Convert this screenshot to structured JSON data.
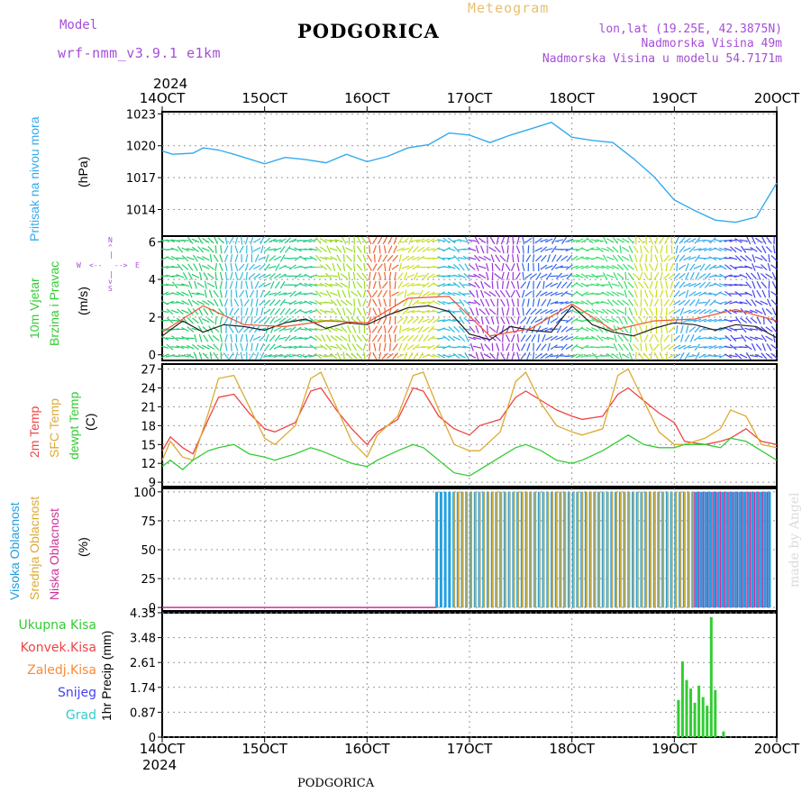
{
  "header": {
    "model_label": "Model",
    "model_name": "wrf-nmm_v3.9.1 e1km",
    "city": "PODGORICA",
    "chart_kind": "Meteogram",
    "lonlat": "lon,lat (19.25E, 42.3875N)",
    "altitude": "Nadmorska Visina 49m",
    "model_altitude": "Nadmorska Visina u modelu 54.7171m",
    "year": "2024",
    "footer_city": "PODGORICA",
    "watermark": "made by Angel"
  },
  "time_axis": {
    "labels": [
      "14OCT",
      "15OCT",
      "16OCT",
      "17OCT",
      "18OCT",
      "19OCT",
      "20OCT"
    ],
    "year_top": "2024",
    "year_bottom": "2024"
  },
  "panel_labels": {
    "pressure": [
      "Pritisak na nivou mora",
      "(hPa)"
    ],
    "wind": [
      "10m Vjetar",
      "Brzina i Pravac",
      "(m/s)"
    ],
    "compass": {
      "n": "N",
      "s": "S",
      "w": "W",
      "e": "E"
    },
    "temp": [
      "2m Temp",
      "SFC Temp",
      "dewpt Temp",
      "(C)"
    ],
    "cloud": [
      "Visoka Oblacnost",
      "Srednja Oblacnost",
      "Niska Oblacnost",
      "(%)"
    ],
    "precip": [
      "Ukupna Kisa",
      "Konvek.Kisa",
      "Zaledj.Kisa",
      "Snijeg",
      "Grad"
    ],
    "precip_axis": "1hr Precip (mm)"
  },
  "colors": {
    "pressure": "#33aaee",
    "wind_speed": "#222222",
    "gust": "#ee5533",
    "t2m": "#ee4444",
    "sfc": "#ddaa33",
    "dew": "#33cc33",
    "cloud_high": "#22a0e0",
    "cloud_mid": "#ddaa33",
    "cloud_low": "#cc3399",
    "rain_total": "#33cc33",
    "rain_conv": "#ee4444",
    "rain_frz": "#ff8833",
    "snow": "#4444ee",
    "hail": "#33cccc"
  },
  "chart_data": [
    {
      "type": "line",
      "name": "pressure",
      "ylabel": "Pritisak na nivou mora (hPa)",
      "ylim": [
        1011.5,
        1023.2
      ],
      "yticks": [
        1014,
        1017,
        1020,
        1023
      ],
      "x_days": [
        0,
        0.1,
        0.3,
        0.4,
        0.55,
        0.7,
        1,
        1.2,
        1.4,
        1.6,
        1.8,
        2,
        2.2,
        2.4,
        2.6,
        2.8,
        3,
        3.2,
        3.4,
        3.6,
        3.8,
        4,
        4.2,
        4.4,
        4.6,
        4.8,
        5,
        5.2,
        5.4,
        5.6,
        5.8,
        6
      ],
      "values": [
        1019.5,
        1019.2,
        1019.3,
        1019.8,
        1019.6,
        1019.2,
        1018.3,
        1018.9,
        1018.7,
        1018.4,
        1019.2,
        1018.5,
        1019.0,
        1019.8,
        1020.1,
        1021.2,
        1021.0,
        1020.3,
        1021.0,
        1021.6,
        1022.2,
        1020.8,
        1020.5,
        1020.3,
        1018.8,
        1017.1,
        1014.9,
        1013.9,
        1013.0,
        1012.8,
        1013.3,
        1016.5
      ],
      "grid": true
    },
    {
      "type": "line",
      "name": "wind",
      "ylabel": "10m Vjetar Brzina i Pravac (m/s)",
      "ylim": [
        -0.3,
        6.3
      ],
      "yticks": [
        0,
        2,
        4,
        6
      ],
      "x_days": [
        0,
        0.2,
        0.4,
        0.6,
        0.8,
        1,
        1.2,
        1.4,
        1.6,
        1.8,
        2,
        2.2,
        2.4,
        2.6,
        2.8,
        3,
        3.2,
        3.4,
        3.6,
        3.8,
        4,
        4.2,
        4.4,
        4.6,
        4.8,
        5,
        5.2,
        5.4,
        5.6,
        5.8,
        6
      ],
      "values": [
        1.0,
        1.8,
        1.2,
        1.6,
        1.5,
        1.3,
        1.7,
        1.9,
        1.4,
        1.7,
        1.6,
        2.1,
        2.5,
        2.6,
        2.3,
        1.1,
        0.8,
        1.5,
        1.3,
        1.2,
        2.6,
        1.6,
        1.2,
        1.0,
        1.4,
        1.7,
        1.6,
        1.3,
        1.6,
        1.5,
        0.9
      ],
      "gust_x_days": [
        0,
        0.4,
        0.8,
        1.2,
        1.6,
        2,
        2.4,
        2.8,
        3.2,
        3.6,
        4,
        4.4,
        4.8,
        5.2,
        5.6,
        6
      ],
      "gust_values": [
        1.2,
        2.6,
        1.6,
        1.5,
        1.8,
        1.7,
        3.0,
        3.1,
        1.0,
        1.4,
        2.7,
        1.3,
        1.8,
        1.9,
        2.4,
        1.8
      ],
      "arrow_color_bands": [
        {
          "from_day": 0.0,
          "to_day": 0.6,
          "color": "#22cc66"
        },
        {
          "from_day": 0.6,
          "to_day": 1.0,
          "color": "#33bbdd"
        },
        {
          "from_day": 1.0,
          "to_day": 1.5,
          "color": "#22cc88"
        },
        {
          "from_day": 1.5,
          "to_day": 2.0,
          "color": "#99dd22"
        },
        {
          "from_day": 2.0,
          "to_day": 2.3,
          "color": "#ee6633"
        },
        {
          "from_day": 2.3,
          "to_day": 2.7,
          "color": "#ccdd22"
        },
        {
          "from_day": 2.7,
          "to_day": 3.0,
          "color": "#22bbdd"
        },
        {
          "from_day": 3.0,
          "to_day": 3.5,
          "color": "#9933dd"
        },
        {
          "from_day": 3.5,
          "to_day": 4.0,
          "color": "#3366ee"
        },
        {
          "from_day": 4.0,
          "to_day": 4.6,
          "color": "#33dd66"
        },
        {
          "from_day": 4.6,
          "to_day": 5.0,
          "color": "#ccdd22"
        },
        {
          "from_day": 5.0,
          "to_day": 5.5,
          "color": "#33aaee"
        },
        {
          "from_day": 5.5,
          "to_day": 6.0,
          "color": "#4444ee"
        }
      ],
      "grid": true
    },
    {
      "type": "line",
      "name": "temperature",
      "ylabel": "(C)",
      "ylim": [
        8.3,
        27.8
      ],
      "yticks": [
        9,
        12,
        15,
        18,
        21,
        24,
        27
      ],
      "x_days": [
        0,
        0.08,
        0.2,
        0.3,
        0.45,
        0.55,
        0.7,
        0.85,
        1,
        1.1,
        1.3,
        1.45,
        1.55,
        1.7,
        1.85,
        2,
        2.1,
        2.3,
        2.45,
        2.55,
        2.7,
        2.85,
        3,
        3.1,
        3.3,
        3.45,
        3.55,
        3.7,
        3.85,
        4,
        4.1,
        4.3,
        4.45,
        4.55,
        4.7,
        4.85,
        5,
        5.1,
        5.3,
        5.45,
        5.55,
        5.7,
        5.85,
        6
      ],
      "series": [
        {
          "name": "2m Temp",
          "values": [
            14.0,
            16.2,
            14.5,
            13.5,
            19.0,
            22.5,
            23.0,
            20.0,
            17.5,
            17.0,
            18.5,
            23.5,
            24.0,
            20.5,
            17.5,
            15.0,
            17.0,
            19.0,
            24.0,
            23.5,
            19.5,
            17.5,
            16.5,
            18.0,
            19.0,
            22.5,
            23.5,
            22.0,
            20.5,
            19.5,
            19.0,
            19.5,
            23.0,
            24.0,
            22.0,
            20.0,
            18.5,
            15.5,
            15.0,
            15.5,
            16.0,
            17.5,
            15.5,
            15.0
          ]
        },
        {
          "name": "SFC Temp",
          "values": [
            12.5,
            15.5,
            13.0,
            12.5,
            20.0,
            25.5,
            26.0,
            21.0,
            16.0,
            15.0,
            18.0,
            25.5,
            26.5,
            21.0,
            15.5,
            13.0,
            16.5,
            19.5,
            26.0,
            26.5,
            20.5,
            15.0,
            14.0,
            14.0,
            17.0,
            25.0,
            26.5,
            21.5,
            18.0,
            17.0,
            16.5,
            17.5,
            26.0,
            27.0,
            22.0,
            17.0,
            15.0,
            15.0,
            16.0,
            17.5,
            20.5,
            19.5,
            15.0,
            14.5
          ]
        },
        {
          "name": "dewpt Temp",
          "values": [
            11.5,
            12.5,
            11.0,
            12.5,
            14.0,
            14.5,
            15.0,
            13.5,
            13.0,
            12.5,
            13.5,
            14.5,
            14.0,
            13.0,
            12.0,
            11.5,
            12.5,
            14.0,
            15.0,
            14.5,
            12.5,
            10.5,
            10.0,
            11.0,
            13.0,
            14.5,
            15.0,
            14.0,
            12.5,
            12.0,
            12.5,
            14.0,
            15.5,
            16.5,
            15.0,
            14.5,
            14.5,
            15.0,
            15.0,
            14.5,
            16.0,
            15.5,
            14.0,
            12.5
          ]
        }
      ],
      "grid": true
    },
    {
      "type": "bar",
      "name": "cloud_cover",
      "ylabel": "(%)",
      "ylim": [
        -3,
        103
      ],
      "yticks": [
        0,
        25,
        50,
        75,
        100
      ],
      "series": [
        {
          "name": "Visoka Oblacnost",
          "segments": [
            {
              "from_day": 2.68,
              "to_day": 5.95,
              "value": 100
            }
          ]
        },
        {
          "name": "Srednja Oblacnost",
          "segments": [
            {
              "from_day": 2.85,
              "to_day": 5.2,
              "value": 100
            }
          ]
        },
        {
          "name": "Niska Oblacnost",
          "segments": [
            {
              "from_day": 5.2,
              "to_day": 5.95,
              "value": 100
            }
          ]
        }
      ],
      "grid": true
    },
    {
      "type": "bar",
      "name": "precipitation",
      "ylabel": "1hr Precip (mm)",
      "ylim": [
        0,
        4.35
      ],
      "yticks": [
        0,
        0.87,
        1.74,
        2.61,
        3.48,
        4.35
      ],
      "x_days": [
        5.04,
        5.08,
        5.12,
        5.16,
        5.2,
        5.24,
        5.28,
        5.32,
        5.36,
        5.4,
        5.44,
        5.48
      ],
      "values": [
        1.3,
        2.65,
        2.0,
        1.7,
        1.2,
        1.8,
        1.4,
        1.1,
        4.2,
        1.65,
        0.0,
        0.2
      ],
      "grid": true
    }
  ]
}
